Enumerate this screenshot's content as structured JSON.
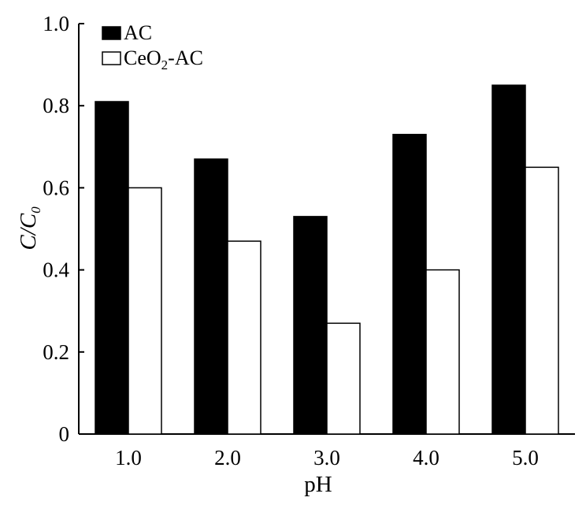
{
  "chart_data": {
    "type": "bar",
    "xlabel": "pH",
    "ylabel": {
      "main": "C/C",
      "subscript": "0"
    },
    "categories": [
      "1.0",
      "2.0",
      "3.0",
      "4.0",
      "5.0"
    ],
    "series": [
      {
        "name": "AC",
        "values": [
          0.81,
          0.67,
          0.53,
          0.73,
          0.85
        ],
        "fill": "#000000"
      },
      {
        "name_main": "CeO",
        "name_sub": "2",
        "name_tail": "-AC",
        "values": [
          0.6,
          0.47,
          0.27,
          0.4,
          0.65
        ],
        "fill": "#ffffff"
      }
    ],
    "ylim": [
      0,
      1.0
    ],
    "yticks": [
      "0",
      "0.2",
      "0.4",
      "0.6",
      "0.8",
      "1.0"
    ],
    "ytick_values": [
      0,
      0.2,
      0.4,
      0.6,
      0.8,
      1.0
    ],
    "legend_position": "top-left",
    "grid": false
  }
}
